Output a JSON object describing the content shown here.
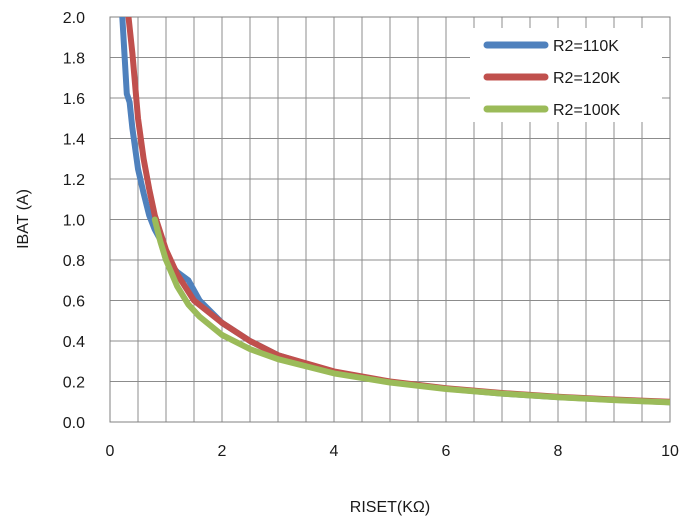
{
  "chart_data": {
    "type": "line",
    "xlabel": "RISET(KΩ)",
    "ylabel": "IBAT (A)",
    "xlim": [
      0,
      10
    ],
    "ylim": [
      0,
      2.0
    ],
    "xticks": [
      0,
      2,
      4,
      6,
      8,
      10
    ],
    "yticks": [
      0.0,
      0.2,
      0.4,
      0.6,
      0.8,
      1.0,
      1.2,
      1.4,
      1.6,
      1.8,
      2.0
    ],
    "ytick_labels": [
      "0.0",
      "0.2",
      "0.4",
      "0.6",
      "0.8",
      "1.0",
      "1.2",
      "1.4",
      "1.6",
      "1.8",
      "2.0"
    ],
    "grid": true,
    "legend_position": "top-right",
    "series": [
      {
        "name": "R2=110K",
        "color": "#4f81bd",
        "x": [
          0.22,
          0.3,
          0.35,
          0.4,
          0.5,
          0.6,
          0.7,
          0.8,
          0.9,
          1.0,
          1.2,
          1.4,
          1.6,
          2,
          2.5,
          3,
          4,
          5,
          6,
          7,
          8,
          9,
          10
        ],
        "y": [
          2.0,
          1.62,
          1.58,
          1.45,
          1.25,
          1.13,
          1.02,
          0.95,
          0.9,
          0.8,
          0.74,
          0.7,
          0.6,
          0.49,
          0.4,
          0.33,
          0.245,
          0.197,
          0.165,
          0.14,
          0.123,
          0.109,
          0.098
        ]
      },
      {
        "name": "R2=120K",
        "color": "#c0504d",
        "x": [
          0.33,
          0.4,
          0.5,
          0.6,
          0.7,
          0.8,
          1.0,
          1.2,
          1.5,
          2,
          2.5,
          3,
          4,
          5,
          6,
          7,
          8,
          9,
          10
        ],
        "y": [
          2.0,
          1.82,
          1.5,
          1.3,
          1.15,
          1.02,
          0.85,
          0.73,
          0.6,
          0.49,
          0.4,
          0.33,
          0.25,
          0.2,
          0.167,
          0.143,
          0.125,
          0.111,
          0.1
        ]
      },
      {
        "name": "R2=100K",
        "color": "#9bbb59",
        "x": [
          0.8,
          0.9,
          1.0,
          1.2,
          1.4,
          1.6,
          2,
          2.5,
          3,
          4,
          5,
          6,
          7,
          8,
          9,
          10
        ],
        "y": [
          1.0,
          0.89,
          0.8,
          0.67,
          0.58,
          0.52,
          0.43,
          0.36,
          0.31,
          0.24,
          0.195,
          0.163,
          0.14,
          0.122,
          0.108,
          0.097
        ]
      }
    ]
  }
}
